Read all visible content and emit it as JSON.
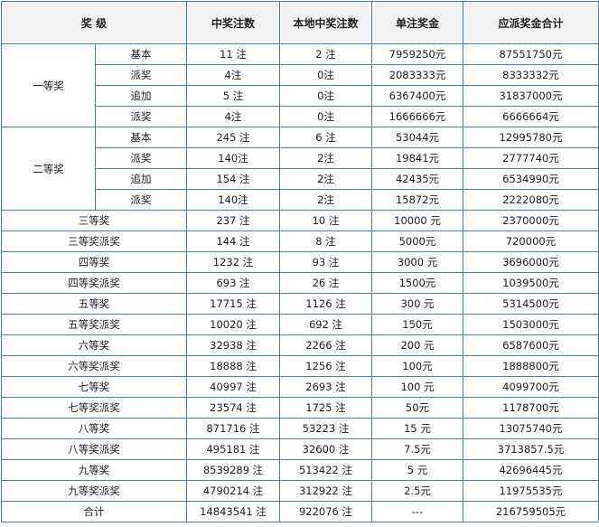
{
  "table": {
    "header": [
      "奖 级",
      "中奖注数",
      "本地中奖注数",
      "单注奖金",
      "应派奖金合计"
    ],
    "groups": [
      {
        "label": "一等奖",
        "rows": [
          [
            "基本",
            "11 注",
            "2 注",
            "7959250元",
            "87551750元"
          ],
          [
            "派奖",
            "4注",
            "0注",
            "2083333元",
            "8333332元"
          ],
          [
            "追加",
            "5 注",
            "0注",
            "6367400元",
            "31837000元"
          ],
          [
            "派奖",
            "4注",
            "0注",
            "1666666元",
            "6666664元"
          ]
        ]
      },
      {
        "label": "二等奖",
        "rows": [
          [
            "基本",
            "245 注",
            "6 注",
            "53044元",
            "12995780元"
          ],
          [
            "派奖",
            "140注",
            "2注",
            "19841元",
            "2777740元"
          ],
          [
            "追加",
            "154 注",
            "2注",
            "42435元",
            "6534990元"
          ],
          [
            "派奖",
            "140注",
            "2注",
            "15872元",
            "2222080元"
          ]
        ]
      }
    ],
    "rows": [
      [
        "三等奖",
        "237 注",
        "10 注",
        "10000 元",
        "2370000元"
      ],
      [
        "三等奖派奖",
        "144 注",
        "8 注",
        "5000元",
        "720000元"
      ],
      [
        "四等奖",
        "1232 注",
        "93 注",
        "3000 元",
        "3696000元"
      ],
      [
        "四等奖派奖",
        "693 注",
        "26 注",
        "1500元",
        "1039500元"
      ],
      [
        "五等奖",
        "17715 注",
        "1126 注",
        "300 元",
        "5314500元"
      ],
      [
        "五等奖派奖",
        "10020 注",
        "692 注",
        "150元",
        "1503000元"
      ],
      [
        "六等奖",
        "32938 注",
        "2266 注",
        "200 元",
        "6587600元"
      ],
      [
        "六等奖派奖",
        "18888 注",
        "1256 注",
        "100元",
        "1888800元"
      ],
      [
        "七等奖",
        "40997 注",
        "2693 注",
        "100 元",
        "4099700元"
      ],
      [
        "七等奖派奖",
        "23574 注",
        "1725 注",
        "50元",
        "1178700元"
      ],
      [
        "八等奖",
        "871716 注",
        "53223 注",
        "15 元",
        "13075740元"
      ],
      [
        "八等奖派奖",
        "495181 注",
        "32600 注",
        "7.5元",
        "3713857.5元"
      ],
      [
        "九等奖",
        "8539289 注",
        "513422 注",
        "5 元",
        "42696445元"
      ],
      [
        "九等奖派奖",
        "4790214 注",
        "312922 注",
        "2.5元",
        "11975535元"
      ],
      [
        "合计",
        "14843541 注",
        "922076 注",
        "---",
        "216759505元"
      ]
    ]
  }
}
